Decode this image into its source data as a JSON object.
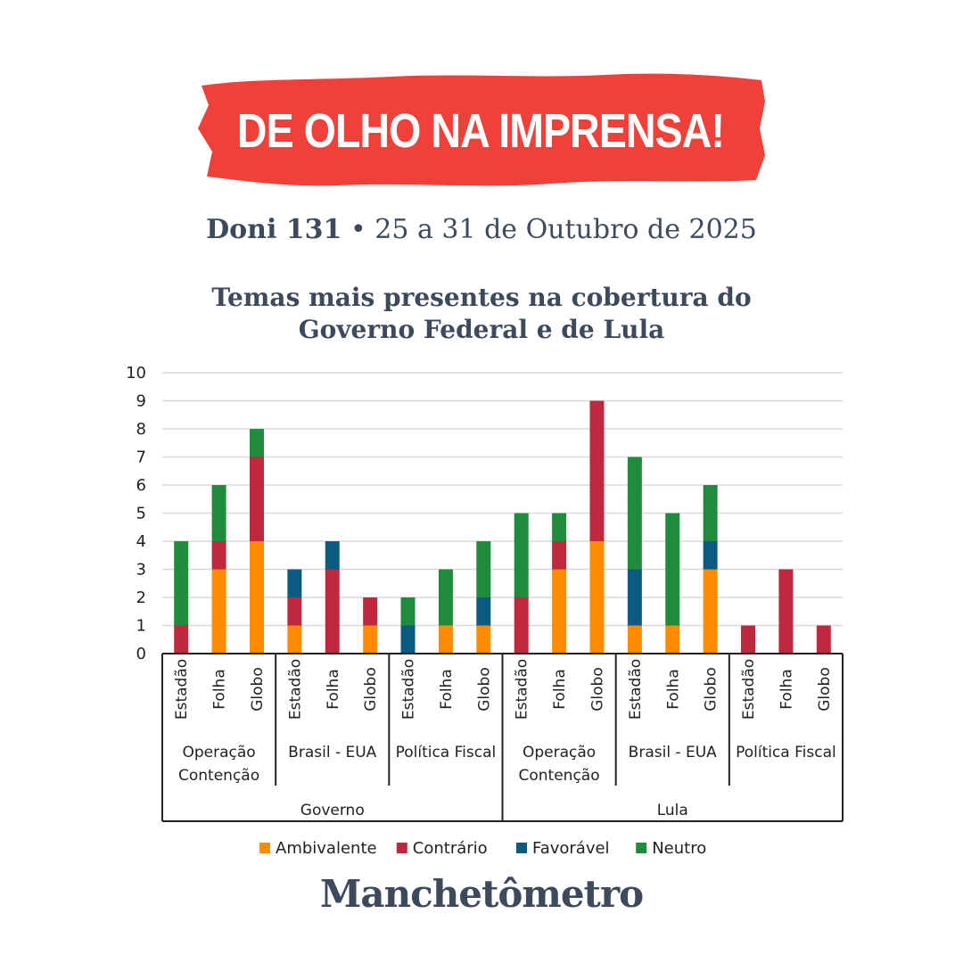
{
  "header": {
    "banner_text": "DE OLHO NA IMPRENSA!",
    "banner_color": "#f0403a",
    "issue": "Doni 131",
    "separator": "•",
    "date_range": "25 a 31 de Outubro de 2025"
  },
  "chart_data": {
    "type": "bar",
    "stacked": true,
    "title": "Temas mais presentes na cobertura do Governo Federal e de Lula",
    "title_lines": [
      "Temas mais presentes na cobertura do",
      "Governo Federal e de Lula"
    ],
    "ylim": [
      0,
      10
    ],
    "yticks": [
      "0",
      "1",
      "2",
      "3",
      "4",
      "5",
      "6",
      "7",
      "8",
      "9",
      "10"
    ],
    "grid": true,
    "legend_position": "bottom",
    "categories": [
      "Estadão",
      "Folha",
      "Globo",
      "Estadão",
      "Folha",
      "Globo",
      "Estadão",
      "Folha",
      "Globo",
      "Estadão",
      "Folha",
      "Globo",
      "Estadão",
      "Folha",
      "Globo",
      "Estadão",
      "Folha",
      "Globo"
    ],
    "groups": [
      {
        "label": [
          "Operação",
          "Contenção"
        ],
        "start": 0,
        "end": 3
      },
      {
        "label": [
          "Brasil - EUA"
        ],
        "start": 3,
        "end": 6
      },
      {
        "label": [
          "Política Fiscal"
        ],
        "start": 6,
        "end": 9
      },
      {
        "label": [
          "Operação",
          "Contenção"
        ],
        "start": 9,
        "end": 12
      },
      {
        "label": [
          "Brasil - EUA"
        ],
        "start": 12,
        "end": 15
      },
      {
        "label": [
          "Política Fiscal"
        ],
        "start": 15,
        "end": 18
      }
    ],
    "supergroups": [
      {
        "label": "Governo",
        "start": 0,
        "end": 9
      },
      {
        "label": "Lula",
        "start": 9,
        "end": 18
      }
    ],
    "series": [
      {
        "name": "Ambivalente",
        "color": "#ff8c00",
        "values": [
          0,
          3,
          4,
          1,
          0,
          1,
          0,
          1,
          1,
          0,
          3,
          4,
          1,
          1,
          3,
          0,
          0,
          0
        ]
      },
      {
        "name": "Contrário",
        "color": "#c0283d",
        "values": [
          1,
          1,
          3,
          1,
          3,
          1,
          0,
          0,
          0,
          2,
          1,
          5,
          0,
          0,
          0,
          1,
          3,
          1
        ]
      },
      {
        "name": "Favorável",
        "color": "#0b5a80",
        "values": [
          0,
          0,
          0,
          1,
          1,
          0,
          1,
          0,
          1,
          0,
          0,
          0,
          2,
          0,
          1,
          0,
          0,
          0
        ]
      },
      {
        "name": "Neutro",
        "color": "#1f8c3c",
        "values": [
          3,
          2,
          1,
          0,
          0,
          0,
          1,
          2,
          2,
          3,
          1,
          0,
          4,
          4,
          2,
          0,
          0,
          0
        ]
      }
    ]
  },
  "footer": {
    "brand": "Manchetômetro"
  }
}
